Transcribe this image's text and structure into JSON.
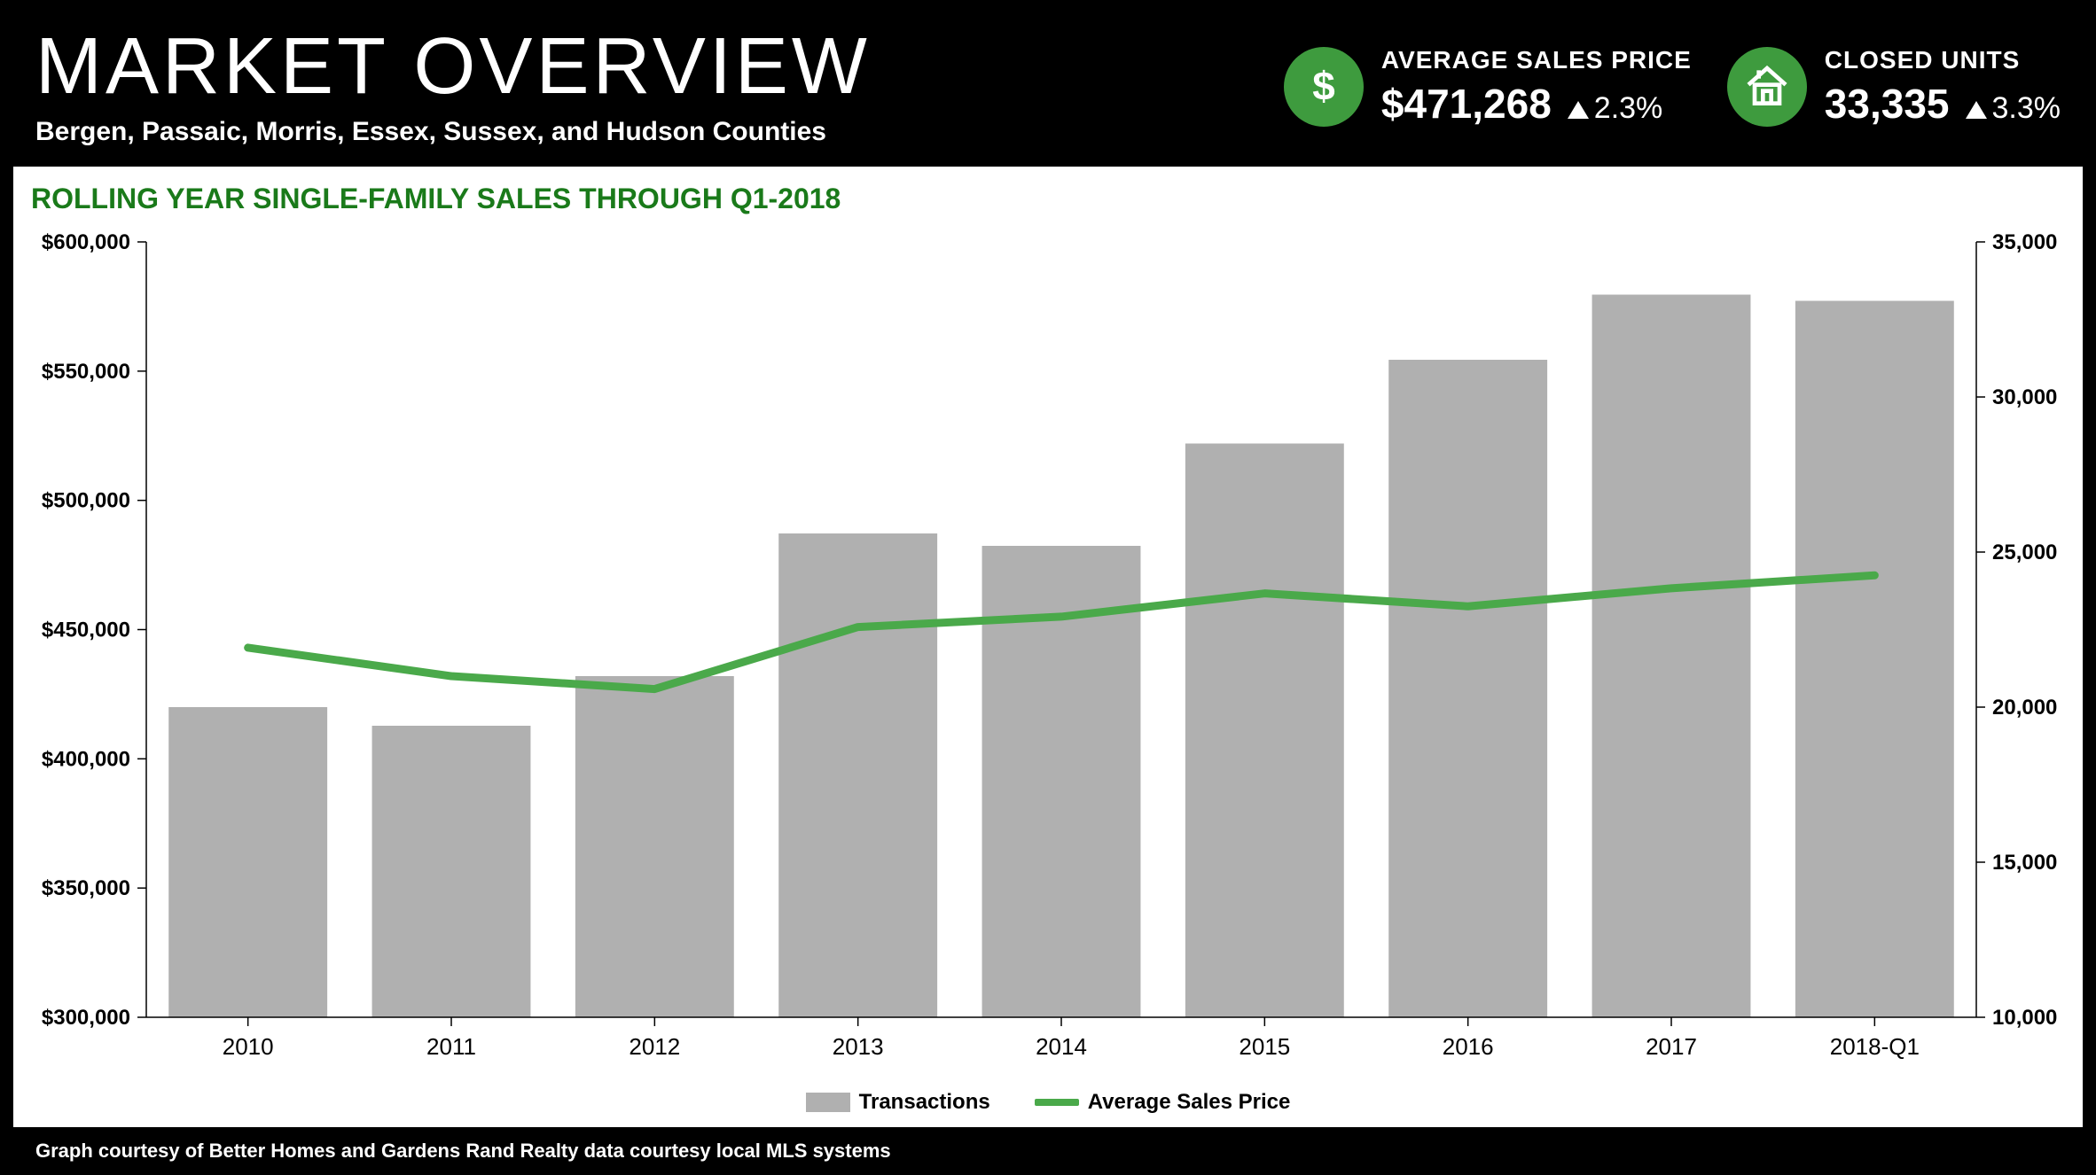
{
  "header": {
    "title": "MARKET OVERVIEW",
    "subtitle": "Bergen, Passaic, Morris, Essex, Sussex, and Hudson Counties"
  },
  "stats": {
    "price": {
      "label": "AVERAGE SALES PRICE",
      "value": "$471,268",
      "change": "2.3%",
      "icon_color": "#3e9b3e"
    },
    "units": {
      "label": "CLOSED UNITS",
      "value": "33,335",
      "change": "3.3%",
      "icon_color": "#3e9b3e"
    }
  },
  "chart": {
    "title": "ROLLING YEAR SINGLE-FAMILY SALES THROUGH Q1-2018",
    "title_color": "#1a7a1a",
    "categories": [
      "2010",
      "2011",
      "2012",
      "2013",
      "2014",
      "2015",
      "2016",
      "2017",
      "2018-Q1"
    ],
    "transactions": [
      20000,
      19400,
      21000,
      25600,
      25200,
      28500,
      31200,
      33300,
      33100
    ],
    "avg_price": [
      443000,
      432000,
      427000,
      451000,
      455000,
      464000,
      459000,
      466000,
      471000
    ],
    "left_axis": {
      "min": 300000,
      "max": 600000,
      "step": 50000,
      "prefix": "$"
    },
    "right_axis": {
      "min": 10000,
      "max": 35000,
      "step": 5000,
      "prefix": ""
    },
    "bar_color": "#b0b0b0",
    "line_color": "#4aa94a",
    "line_width": 9,
    "bar_width_ratio": 0.78,
    "legend": {
      "bar_label": "Transactions",
      "line_label": "Average Sales Price"
    }
  },
  "footer": "Graph courtesy of Better Homes and Gardens Rand Realty data courtesy local MLS systems"
}
